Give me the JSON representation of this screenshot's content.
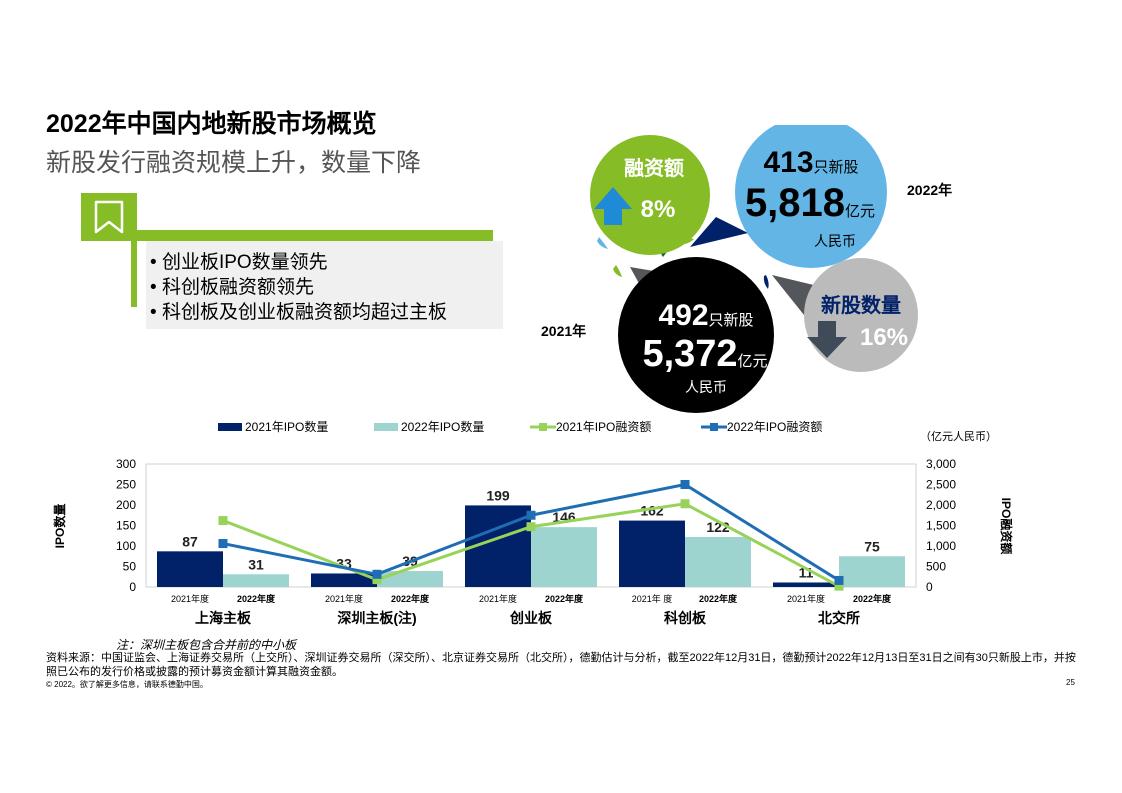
{
  "header": {
    "title": "2022年中国内地新股市场概览",
    "subtitle": "新股发行融资规模上升，数量下降"
  },
  "highlights": {
    "icon": "bookmark-icon",
    "items": [
      "创业板IPO数量领先",
      "科创板融资额领先",
      "科创板及创业板融资额均超过主板"
    ]
  },
  "bubbles": {
    "funds": {
      "label": "融资额",
      "change": "8%",
      "direction": "up",
      "color": "#86bc25"
    },
    "count": {
      "label": "新股数量",
      "change": "16%",
      "direction": "down",
      "color": "#bbbbbb"
    },
    "y2022": {
      "year": "2022年",
      "ipo_num": "413",
      "ipo_unit": "只新股",
      "amount": "5,818",
      "amount_unit": "亿元",
      "currency": "人民币",
      "color": "#62b5e5"
    },
    "y2021": {
      "year": "2021年",
      "ipo_num": "492",
      "ipo_unit": "只新股",
      "amount": "5,372",
      "amount_unit": "亿元",
      "currency": "人民币",
      "color": "#000000"
    }
  },
  "chart_data": {
    "type": "bar",
    "unit_note": "（亿元人民币）",
    "ylabel": "IPO数量",
    "y2label": "IPO融资额",
    "ylim": [
      0,
      300
    ],
    "y2lim": [
      0,
      3000
    ],
    "yticks": [
      "0",
      "50",
      "100",
      "150",
      "200",
      "250",
      "300"
    ],
    "y2ticks": [
      "0",
      "500",
      "1,000",
      "1,500",
      "2,000",
      "2,500",
      "3,000"
    ],
    "categories": [
      "上海主板",
      "深圳主板(注)",
      "创业板",
      "科创板",
      "北交所"
    ],
    "sub_labels": [
      [
        "2021年度",
        "2022年度"
      ],
      [
        "2021年度",
        "2022年度"
      ],
      [
        "2021年度",
        "2022年度"
      ],
      [
        "2021年 度",
        "2022年度"
      ],
      [
        "2021年度",
        "2022年度"
      ]
    ],
    "series": [
      {
        "name": "2021年IPO数量",
        "kind": "bar",
        "axis": "left",
        "color": "#012169",
        "values": [
          87,
          33,
          199,
          162,
          11
        ],
        "labels": [
          "87",
          "33",
          "199",
          "162",
          "11"
        ]
      },
      {
        "name": "2022年IPO数量",
        "kind": "bar",
        "axis": "left",
        "color": "#9dd4cf",
        "values": [
          31,
          39,
          146,
          122,
          75
        ],
        "labels": [
          "31",
          "39",
          "146",
          "122",
          "75"
        ]
      },
      {
        "name": "2021年IPO融资额",
        "kind": "line",
        "axis": "right",
        "color": "#97d35a",
        "values": [
          1620,
          180,
          1470,
          2030,
          20
        ]
      },
      {
        "name": "2022年IPO融资额",
        "kind": "line",
        "axis": "right",
        "color": "#1f6eb5",
        "values": [
          1060,
          310,
          1750,
          2500,
          160
        ]
      }
    ]
  },
  "notes": {
    "footnote": "注：深圳主板包含合并前的中小板",
    "source": "资料来源：中国证监会、上海证券交易所（上交所）、深圳证券交易所（深交所）、北京证券交易所（北交所），德勤估计与分析，截至2022年12月31日，德勤预计2022年12月13日至31日之间有30只新股上市，并按照已公布的发行价格或披露的预计募资金额计算其融资金额。",
    "copyright": "© 2022。欲了解更多信息，请联系德勤中国。",
    "page": "25"
  }
}
